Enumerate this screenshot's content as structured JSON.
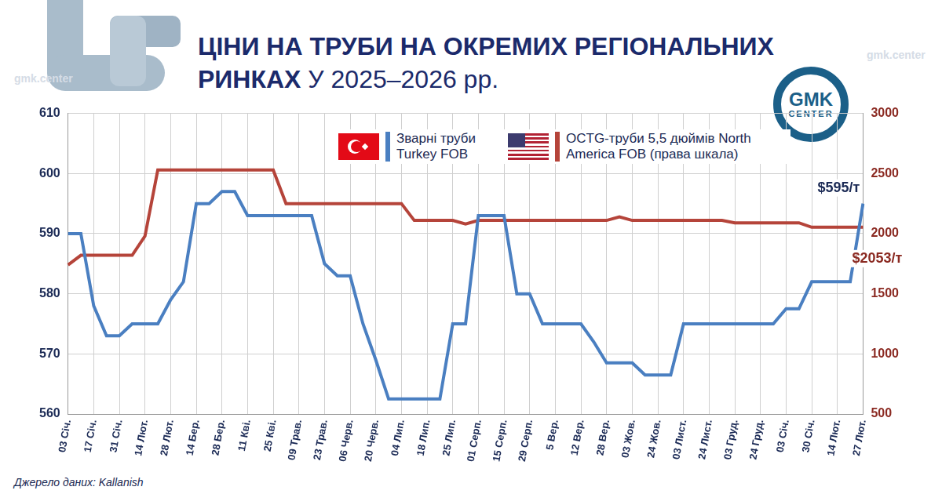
{
  "chart_data": {
    "type": "line",
    "title": "ЦІНИ НА ТРУБИ НА ОКРЕМИХ РЕГІОНАЛЬНИХ РИНКАХ",
    "subtitle": "У 2025–2026 рр.",
    "source": "Джерело даних: Kallanish",
    "logo": [
      "GMK",
      "CENTER"
    ],
    "watermark": "gmk.center",
    "categories": [
      "03 Січ.",
      null,
      "17 Січ.",
      null,
      "31 Січ.",
      null,
      "14 Лют.",
      null,
      "28 Лют.",
      null,
      "14 Бер.",
      null,
      "28 Бер.",
      null,
      "11 Кві.",
      null,
      "25 Кві.",
      null,
      "09 Трав.",
      null,
      "23 Трав.",
      null,
      "06 Черв.",
      null,
      "20 Черв.",
      null,
      "04 Лип.",
      null,
      "18 Лип.",
      null,
      "25 Лип.",
      null,
      "01 Серп.",
      null,
      "15 Серп.",
      null,
      "29 Серп.",
      null,
      "5 Вер.",
      null,
      "12 Вер.",
      null,
      "28 Вер.",
      null,
      "03 Жов.",
      null,
      "24 Жов.",
      null,
      "03 Лист.",
      null,
      "24 Лист.",
      null,
      "03 Груд.",
      null,
      "24 Груд.",
      null,
      "03 Січ.",
      null,
      "30 Січ.",
      null,
      "14 Лют.",
      null,
      "27 Лют."
    ],
    "series": [
      {
        "name": "Зварні труби Turkey FOB",
        "color": "#4a7fc1",
        "end_label": "$595/т",
        "values": [
          590,
          590,
          578,
          573,
          573,
          575,
          575,
          575,
          579,
          582,
          595,
          595,
          597,
          597,
          593,
          593,
          593,
          593,
          593,
          593,
          585,
          583,
          583,
          575,
          569,
          562.5,
          562.5,
          562.5,
          562.5,
          562.5,
          575,
          575,
          593,
          593,
          593,
          580,
          580,
          575,
          575,
          575,
          575,
          572,
          568.5,
          568.5,
          568.5,
          566.5,
          566.5,
          566.5,
          575,
          575,
          575,
          575,
          575,
          575,
          575,
          575,
          577.5,
          577.5,
          582,
          582,
          582,
          582,
          595
        ]
      },
      {
        "name": "OCTG-труби 5,5 дюймів North America FOB (права шкала)",
        "color": "#b5443a",
        "axis": "y2",
        "end_label": "$2053/т",
        "values": [
          1740,
          1820,
          1820,
          1820,
          1820,
          1820,
          1980,
          2530,
          2530,
          2530,
          2530,
          2530,
          2530,
          2530,
          2530,
          2530,
          2530,
          2250,
          2250,
          2250,
          2250,
          2250,
          2250,
          2250,
          2250,
          2250,
          2250,
          2110,
          2110,
          2110,
          2110,
          2080,
          2110,
          2110,
          2110,
          2110,
          2110,
          2110,
          2110,
          2110,
          2110,
          2110,
          2110,
          2140,
          2110,
          2110,
          2110,
          2110,
          2110,
          2110,
          2110,
          2110,
          2090,
          2090,
          2090,
          2090,
          2090,
          2090,
          2053,
          2053,
          2053,
          2053,
          2053
        ]
      }
    ],
    "ylim": [
      560,
      610
    ],
    "yticks": [
      560,
      570,
      580,
      590,
      600,
      610
    ],
    "y2lim": [
      500,
      3000
    ],
    "y2ticks": [
      500,
      1000,
      1500,
      2000,
      2500,
      3000
    ],
    "grid": true,
    "legend": "top"
  }
}
